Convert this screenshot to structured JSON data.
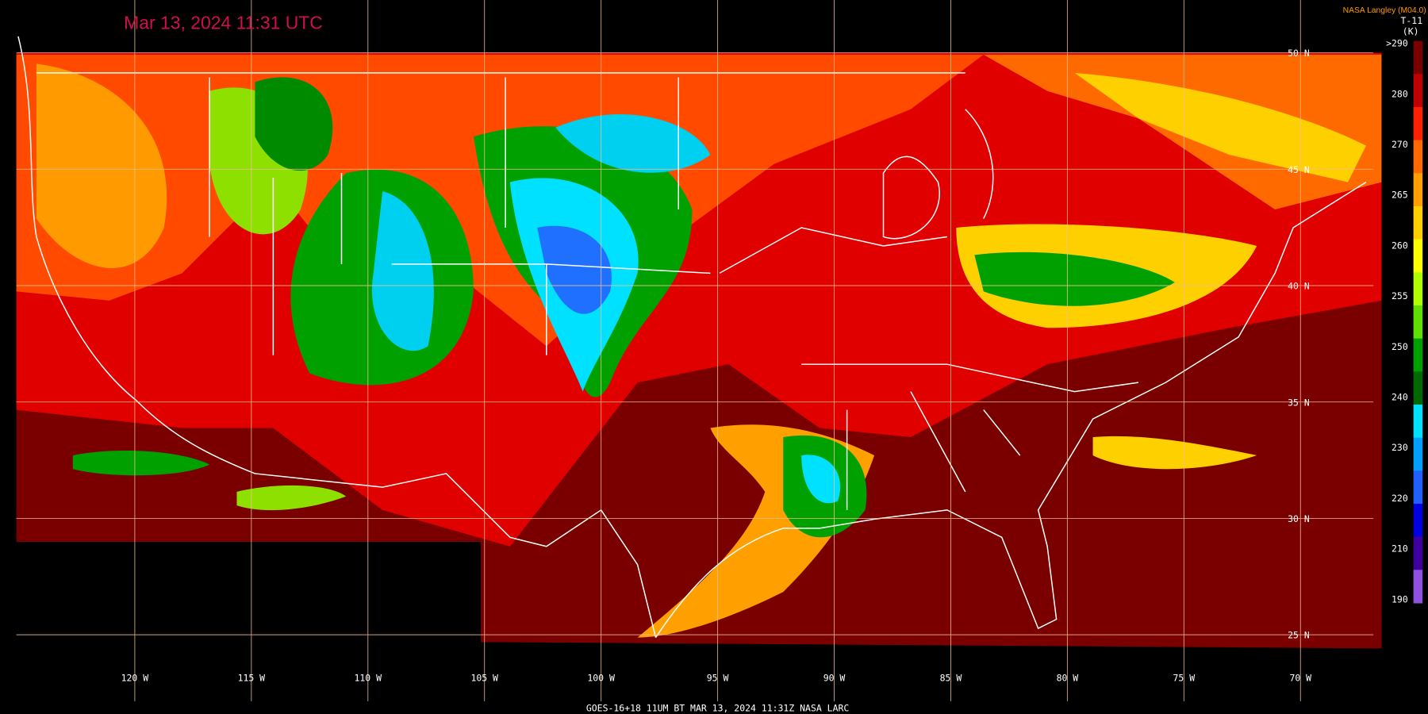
{
  "header": {
    "timestamp": "Mar 13, 2024 11:31 UTC",
    "credit": "NASA Langley (M04.0)",
    "product": "T-11",
    "unit": "(K)"
  },
  "colorbar": {
    "labels": [
      ">290",
      "280",
      "270",
      "265",
      "260",
      "255",
      "250",
      "240",
      "230",
      "220",
      "210",
      "190"
    ]
  },
  "latitude_labels": [
    "50 N",
    "45 N",
    "40 N",
    "35 N",
    "30 N",
    "25 N"
  ],
  "longitude_labels": [
    "120 W",
    "115 W",
    "110 W",
    "105 W",
    "100 W",
    "95 W",
    "90 W",
    "85 W",
    "80 W",
    "75 W",
    "70 W"
  ],
  "footer": "GOES-16+18  11UM BT  MAR 13, 2024 11:31Z  NASA LARC"
}
